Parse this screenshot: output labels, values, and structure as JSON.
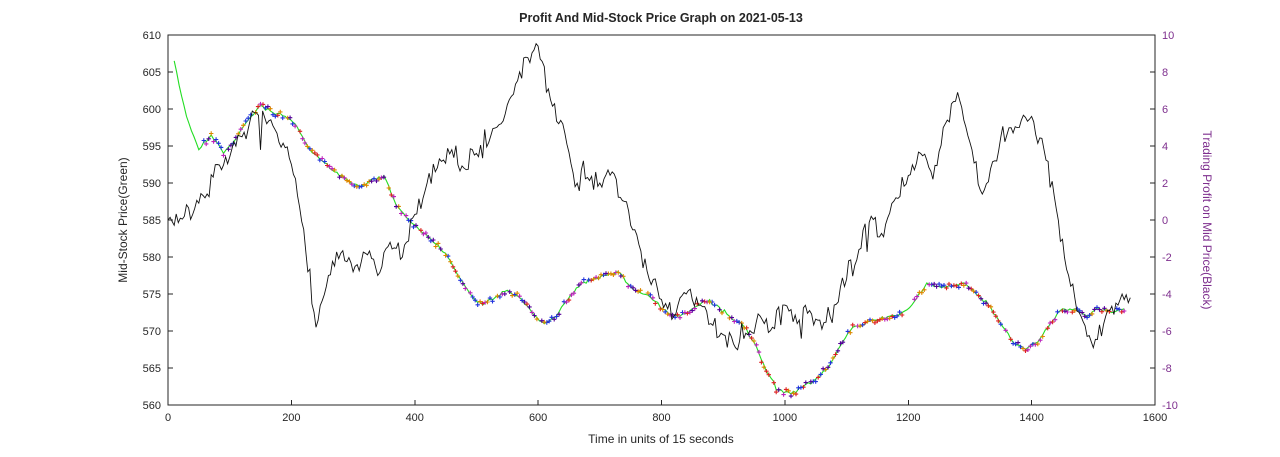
{
  "chart_data": {
    "type": "line",
    "title": "Profit And Mid-Stock Price Graph on 2021-05-13",
    "xlabel": "Time in units of 15 seconds",
    "ylabel_left": "Mid-Stock Price(Green)",
    "ylabel_right": "Trading Profit on Mid Price(Black)",
    "xlim": [
      0,
      1600
    ],
    "ylim_left": [
      560,
      610
    ],
    "ylim_right": [
      -10,
      10
    ],
    "xticks": [
      0,
      200,
      400,
      600,
      800,
      1000,
      1200,
      1400,
      1600
    ],
    "yticks_left": [
      560,
      565,
      570,
      575,
      580,
      585,
      590,
      595,
      600,
      605,
      610
    ],
    "yticks_right": [
      -10,
      -8,
      -6,
      -4,
      -2,
      0,
      2,
      4,
      6,
      8,
      10
    ],
    "grid": false,
    "legend": "none",
    "colors": {
      "price_line": "#22dd22",
      "profit_line": "#111111",
      "right_axis_text": "#7E2F8E",
      "axis_box": "#262626",
      "marker_palette": [
        "#dd2222",
        "#2233dd",
        "#bb22bb",
        "#dd8800",
        "#550099"
      ]
    },
    "series": [
      {
        "name": "Mid-Stock Price (Green, with trade markers)",
        "axis": "left",
        "style": "line+markers",
        "marker": "+",
        "x": [
          10,
          30,
          50,
          70,
          90,
          110,
          130,
          150,
          170,
          190,
          210,
          230,
          250,
          270,
          290,
          310,
          330,
          350,
          370,
          390,
          410,
          430,
          450,
          470,
          490,
          510,
          530,
          550,
          570,
          590,
          610,
          630,
          650,
          670,
          690,
          710,
          730,
          750,
          770,
          790,
          810,
          830,
          850,
          870,
          890,
          910,
          930,
          950,
          970,
          990,
          1010,
          1030,
          1050,
          1070,
          1090,
          1110,
          1130,
          1150,
          1170,
          1190,
          1210,
          1230,
          1250,
          1270,
          1290,
          1310,
          1330,
          1350,
          1370,
          1390,
          1410,
          1430,
          1450,
          1470,
          1490,
          1510,
          1530,
          1550
        ],
        "y": [
          606.5,
          599,
          594.5,
          596.5,
          594,
          596,
          598.5,
          600.5,
          599.5,
          599,
          597.5,
          594.5,
          593,
          591.5,
          590.5,
          589.5,
          590.5,
          591,
          587,
          585,
          583.5,
          582,
          580.5,
          577.5,
          575,
          573.5,
          574.5,
          575.5,
          574.5,
          572.5,
          571,
          572,
          574.5,
          576.5,
          577,
          577.5,
          578,
          576,
          575,
          574,
          572.5,
          572,
          573,
          574,
          573.5,
          572,
          571,
          568.5,
          564.5,
          562,
          561.5,
          562.5,
          563.5,
          565,
          568,
          570.5,
          571,
          571.5,
          572,
          572.5,
          574,
          576.5,
          576,
          576,
          576.5,
          575,
          573.5,
          571,
          568.5,
          567.5,
          568.5,
          571,
          573,
          573,
          572,
          573,
          572.5,
          573
        ]
      },
      {
        "name": "Trading Profit on Mid Price (Black)",
        "axis": "right",
        "style": "line",
        "x": [
          0,
          20,
          40,
          60,
          80,
          100,
          120,
          140,
          160,
          180,
          200,
          220,
          240,
          260,
          280,
          300,
          320,
          340,
          360,
          380,
          400,
          420,
          440,
          460,
          480,
          500,
          520,
          540,
          560,
          580,
          600,
          620,
          640,
          660,
          680,
          700,
          720,
          740,
          760,
          780,
          800,
          820,
          840,
          860,
          880,
          900,
          920,
          940,
          960,
          980,
          1000,
          1020,
          1040,
          1060,
          1080,
          1100,
          1120,
          1140,
          1160,
          1180,
          1200,
          1220,
          1240,
          1260,
          1280,
          1300,
          1320,
          1340,
          1360,
          1380,
          1400,
          1420,
          1440,
          1460,
          1480,
          1500,
          1520,
          1540,
          1560
        ],
        "y": [
          0,
          0.1,
          0.3,
          1.2,
          3.0,
          3.4,
          4.5,
          5.8,
          5.2,
          4.2,
          3.0,
          -0.5,
          -5.8,
          -3.0,
          -1.8,
          -2.8,
          -1.8,
          -3.0,
          -1.2,
          -2.0,
          0.3,
          2.0,
          3.3,
          3.8,
          2.8,
          3.6,
          4.2,
          5.2,
          6.8,
          8.8,
          9.4,
          6.5,
          5.2,
          1.8,
          2.3,
          2.0,
          2.6,
          1.0,
          -0.8,
          -3.2,
          -4.3,
          -5.2,
          -4.0,
          -4.6,
          -5.6,
          -6.2,
          -6.9,
          -6.2,
          -5.2,
          -5.8,
          -4.6,
          -5.6,
          -4.9,
          -5.9,
          -4.6,
          -3.2,
          -1.6,
          0.2,
          -0.9,
          1.2,
          2.4,
          3.6,
          2.2,
          5.2,
          6.9,
          4.2,
          1.4,
          3.2,
          4.6,
          5.0,
          5.6,
          3.8,
          0.6,
          -3.0,
          -5.2,
          -6.9,
          -5.2,
          -4.6,
          -4.2
        ]
      }
    ]
  }
}
